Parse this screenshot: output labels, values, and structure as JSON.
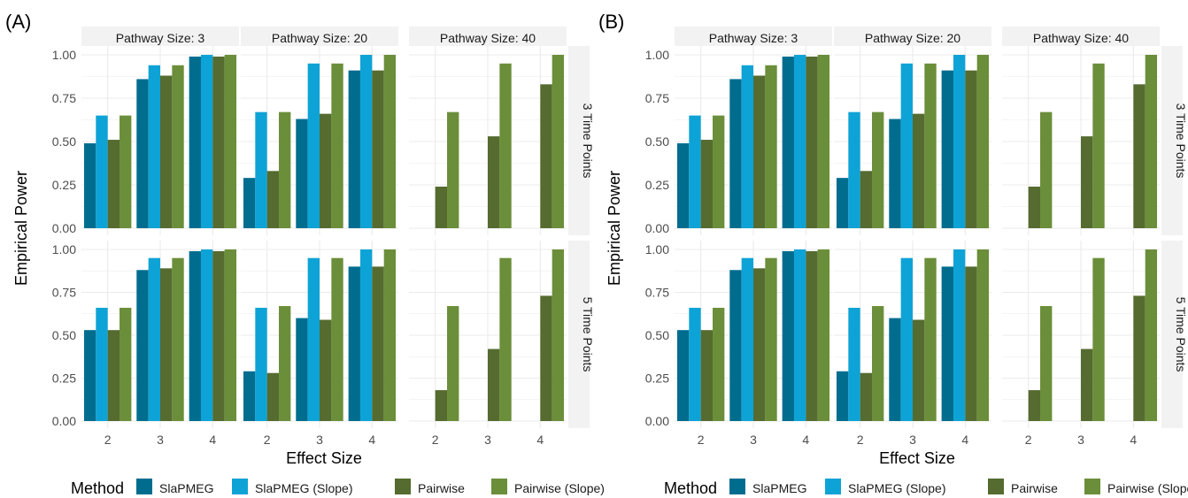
{
  "colors": {
    "SlaPMEG": "#006d8f",
    "SlaPMEG (Slope)": "#0ea3d6",
    "Pairwise": "#556b2f",
    "Pairwise (Slope)": "#6b8e3a",
    "panel_bg": "#ffffff",
    "strip_bg": "#f2f2f2",
    "grid": "#ebebeb"
  },
  "legend": {
    "title": "Method",
    "items": [
      "SlaPMEG",
      "SlaPMEG (Slope)",
      "Pairwise",
      "Pairwise (Slope)"
    ]
  },
  "chart_data": [
    {
      "type": "bar",
      "panel_label": "(A)",
      "xlabel": "Effect Size",
      "ylabel": "Empirical Power",
      "ylim": [
        0,
        1
      ],
      "yticks": [
        "0.00",
        "0.25",
        "0.50",
        "0.75",
        "1.00"
      ],
      "categories": [
        "2",
        "3",
        "4"
      ],
      "col_facets": [
        "Pathway Size: 3",
        "Pathway Size: 20",
        "Pathway Size: 40"
      ],
      "row_facets": [
        "3 Time Points",
        "5 Time Points"
      ],
      "grid": true,
      "legend_position": "bottom",
      "facets": [
        [
          {
            "series": [
              {
                "name": "SlaPMEG",
                "values": [
                  0.49,
                  0.86,
                  0.99
                ]
              },
              {
                "name": "SlaPMEG (Slope)",
                "values": [
                  0.65,
                  0.94,
                  1.0
                ]
              },
              {
                "name": "Pairwise",
                "values": [
                  0.51,
                  0.88,
                  0.99
                ]
              },
              {
                "name": "Pairwise (Slope)",
                "values": [
                  0.65,
                  0.94,
                  1.0
                ]
              }
            ]
          },
          {
            "series": [
              {
                "name": "SlaPMEG",
                "values": [
                  0.29,
                  0.63,
                  0.91
                ]
              },
              {
                "name": "SlaPMEG (Slope)",
                "values": [
                  0.67,
                  0.95,
                  1.0
                ]
              },
              {
                "name": "Pairwise",
                "values": [
                  0.33,
                  0.66,
                  0.91
                ]
              },
              {
                "name": "Pairwise (Slope)",
                "values": [
                  0.67,
                  0.95,
                  1.0
                ]
              }
            ]
          },
          {
            "series": [
              {
                "name": "SlaPMEG",
                "values": [
                  0,
                  0,
                  0
                ]
              },
              {
                "name": "SlaPMEG (Slope)",
                "values": [
                  0,
                  0,
                  0
                ]
              },
              {
                "name": "Pairwise",
                "values": [
                  0.24,
                  0.53,
                  0.83
                ]
              },
              {
                "name": "Pairwise (Slope)",
                "values": [
                  0.67,
                  0.95,
                  1.0
                ]
              }
            ]
          }
        ],
        [
          {
            "series": [
              {
                "name": "SlaPMEG",
                "values": [
                  0.53,
                  0.88,
                  0.99
                ]
              },
              {
                "name": "SlaPMEG (Slope)",
                "values": [
                  0.66,
                  0.95,
                  1.0
                ]
              },
              {
                "name": "Pairwise",
                "values": [
                  0.53,
                  0.89,
                  0.99
                ]
              },
              {
                "name": "Pairwise (Slope)",
                "values": [
                  0.66,
                  0.95,
                  1.0
                ]
              }
            ]
          },
          {
            "series": [
              {
                "name": "SlaPMEG",
                "values": [
                  0.29,
                  0.6,
                  0.9
                ]
              },
              {
                "name": "SlaPMEG (Slope)",
                "values": [
                  0.66,
                  0.95,
                  1.0
                ]
              },
              {
                "name": "Pairwise",
                "values": [
                  0.28,
                  0.59,
                  0.9
                ]
              },
              {
                "name": "Pairwise (Slope)",
                "values": [
                  0.67,
                  0.95,
                  1.0
                ]
              }
            ]
          },
          {
            "series": [
              {
                "name": "SlaPMEG",
                "values": [
                  0,
                  0,
                  0
                ]
              },
              {
                "name": "SlaPMEG (Slope)",
                "values": [
                  0,
                  0,
                  0
                ]
              },
              {
                "name": "Pairwise",
                "values": [
                  0.18,
                  0.42,
                  0.73
                ]
              },
              {
                "name": "Pairwise (Slope)",
                "values": [
                  0.67,
                  0.95,
                  1.0
                ]
              }
            ]
          }
        ]
      ]
    },
    {
      "type": "bar",
      "panel_label": "(B)",
      "xlabel": "Effect Size",
      "ylabel": "Empirical Power",
      "ylim": [
        0,
        1
      ],
      "yticks": [
        "0.00",
        "0.25",
        "0.50",
        "0.75",
        "1.00"
      ],
      "categories": [
        "2",
        "3",
        "4"
      ],
      "col_facets": [
        "Pathway Size: 3",
        "Pathway Size: 20",
        "Pathway Size: 40"
      ],
      "row_facets": [
        "3 Time Points",
        "5 Time Points"
      ],
      "grid": true,
      "legend_position": "bottom",
      "facets": [
        [
          {
            "series": [
              {
                "name": "SlaPMEG",
                "values": [
                  0.49,
                  0.86,
                  0.99
                ]
              },
              {
                "name": "SlaPMEG (Slope)",
                "values": [
                  0.65,
                  0.94,
                  1.0
                ]
              },
              {
                "name": "Pairwise",
                "values": [
                  0.51,
                  0.88,
                  0.99
                ]
              },
              {
                "name": "Pairwise (Slope)",
                "values": [
                  0.65,
                  0.94,
                  1.0
                ]
              }
            ]
          },
          {
            "series": [
              {
                "name": "SlaPMEG",
                "values": [
                  0.29,
                  0.63,
                  0.91
                ]
              },
              {
                "name": "SlaPMEG (Slope)",
                "values": [
                  0.67,
                  0.95,
                  1.0
                ]
              },
              {
                "name": "Pairwise",
                "values": [
                  0.33,
                  0.66,
                  0.91
                ]
              },
              {
                "name": "Pairwise (Slope)",
                "values": [
                  0.67,
                  0.95,
                  1.0
                ]
              }
            ]
          },
          {
            "series": [
              {
                "name": "SlaPMEG",
                "values": [
                  0,
                  0,
                  0
                ]
              },
              {
                "name": "SlaPMEG (Slope)",
                "values": [
                  0,
                  0,
                  0
                ]
              },
              {
                "name": "Pairwise",
                "values": [
                  0.24,
                  0.53,
                  0.83
                ]
              },
              {
                "name": "Pairwise (Slope)",
                "values": [
                  0.67,
                  0.95,
                  1.0
                ]
              }
            ]
          }
        ],
        [
          {
            "series": [
              {
                "name": "SlaPMEG",
                "values": [
                  0.53,
                  0.88,
                  0.99
                ]
              },
              {
                "name": "SlaPMEG (Slope)",
                "values": [
                  0.66,
                  0.95,
                  1.0
                ]
              },
              {
                "name": "Pairwise",
                "values": [
                  0.53,
                  0.89,
                  0.99
                ]
              },
              {
                "name": "Pairwise (Slope)",
                "values": [
                  0.66,
                  0.95,
                  1.0
                ]
              }
            ]
          },
          {
            "series": [
              {
                "name": "SlaPMEG",
                "values": [
                  0.29,
                  0.6,
                  0.9
                ]
              },
              {
                "name": "SlaPMEG (Slope)",
                "values": [
                  0.66,
                  0.95,
                  1.0
                ]
              },
              {
                "name": "Pairwise",
                "values": [
                  0.28,
                  0.59,
                  0.9
                ]
              },
              {
                "name": "Pairwise (Slope)",
                "values": [
                  0.67,
                  0.95,
                  1.0
                ]
              }
            ]
          },
          {
            "series": [
              {
                "name": "SlaPMEG",
                "values": [
                  0,
                  0,
                  0
                ]
              },
              {
                "name": "SlaPMEG (Slope)",
                "values": [
                  0,
                  0,
                  0
                ]
              },
              {
                "name": "Pairwise",
                "values": [
                  0.18,
                  0.42,
                  0.73
                ]
              },
              {
                "name": "Pairwise (Slope)",
                "values": [
                  0.67,
                  0.95,
                  1.0
                ]
              }
            ]
          }
        ]
      ]
    }
  ]
}
